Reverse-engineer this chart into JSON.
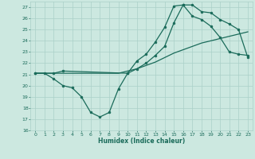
{
  "xlabel": "Humidex (Indice chaleur)",
  "ylabel": "",
  "bg_color": "#cce8e0",
  "grid_color": "#aad0c8",
  "line_color": "#1a6b5a",
  "xlim": [
    -0.5,
    23.5
  ],
  "ylim": [
    16,
    27.5
  ],
  "xticks": [
    0,
    1,
    2,
    3,
    4,
    5,
    6,
    7,
    8,
    9,
    10,
    11,
    12,
    13,
    14,
    15,
    16,
    17,
    18,
    19,
    20,
    21,
    22,
    23
  ],
  "yticks": [
    16,
    17,
    18,
    19,
    20,
    21,
    22,
    23,
    24,
    25,
    26,
    27
  ],
  "line1_x": [
    0,
    1,
    2,
    3,
    4,
    5,
    6,
    7,
    8,
    9,
    10,
    11,
    12,
    13,
    14,
    15,
    16,
    17,
    18,
    19,
    20,
    21,
    22,
    23
  ],
  "line1_y": [
    21.1,
    21.1,
    20.6,
    20.0,
    19.8,
    19.0,
    17.6,
    17.2,
    17.6,
    19.7,
    21.1,
    22.2,
    22.8,
    23.9,
    25.2,
    27.1,
    27.2,
    26.2,
    25.9,
    25.3,
    24.3,
    23.0,
    22.8,
    22.7
  ],
  "line2_x": [
    0,
    1,
    2,
    3,
    4,
    5,
    6,
    7,
    8,
    9,
    10,
    11,
    12,
    13,
    14,
    15,
    16,
    17,
    18,
    19,
    20,
    21,
    22,
    23
  ],
  "line2_y": [
    21.1,
    21.1,
    21.1,
    21.1,
    21.1,
    21.1,
    21.1,
    21.1,
    21.1,
    21.1,
    21.3,
    21.5,
    21.8,
    22.1,
    22.5,
    22.9,
    23.2,
    23.5,
    23.8,
    24.0,
    24.2,
    24.4,
    24.6,
    24.8
  ],
  "line3_x": [
    0,
    2,
    3,
    10,
    11,
    12,
    13,
    14,
    15,
    16,
    17,
    18,
    19,
    20,
    21,
    22,
    23
  ],
  "line3_y": [
    21.1,
    21.1,
    21.3,
    21.1,
    21.5,
    22.0,
    22.7,
    23.5,
    25.6,
    27.2,
    27.2,
    26.6,
    26.5,
    25.9,
    25.5,
    25.0,
    22.5
  ],
  "marker": "o",
  "markersize": 2.0,
  "linewidth": 0.9
}
